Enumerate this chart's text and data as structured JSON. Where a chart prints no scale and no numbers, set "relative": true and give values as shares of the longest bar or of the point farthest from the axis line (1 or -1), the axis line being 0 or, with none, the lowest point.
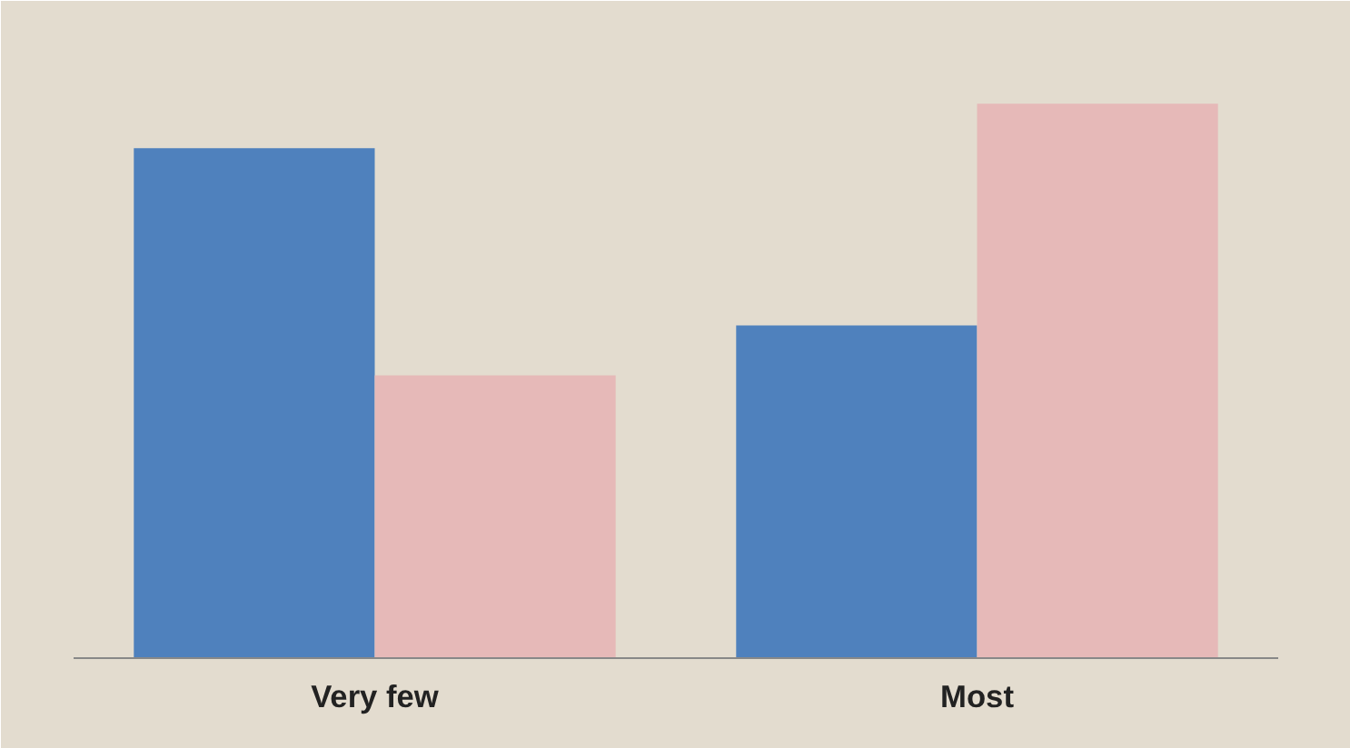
{
  "chart_data": {
    "type": "bar",
    "relative": true,
    "categories": [
      "Very few",
      "Most"
    ],
    "series": [
      {
        "color": "#4f81bd",
        "values": [
          0.92,
          0.6
        ]
      },
      {
        "color": "#e6b9b8",
        "values": [
          0.51,
          1.0
        ]
      }
    ],
    "grid": false
  }
}
